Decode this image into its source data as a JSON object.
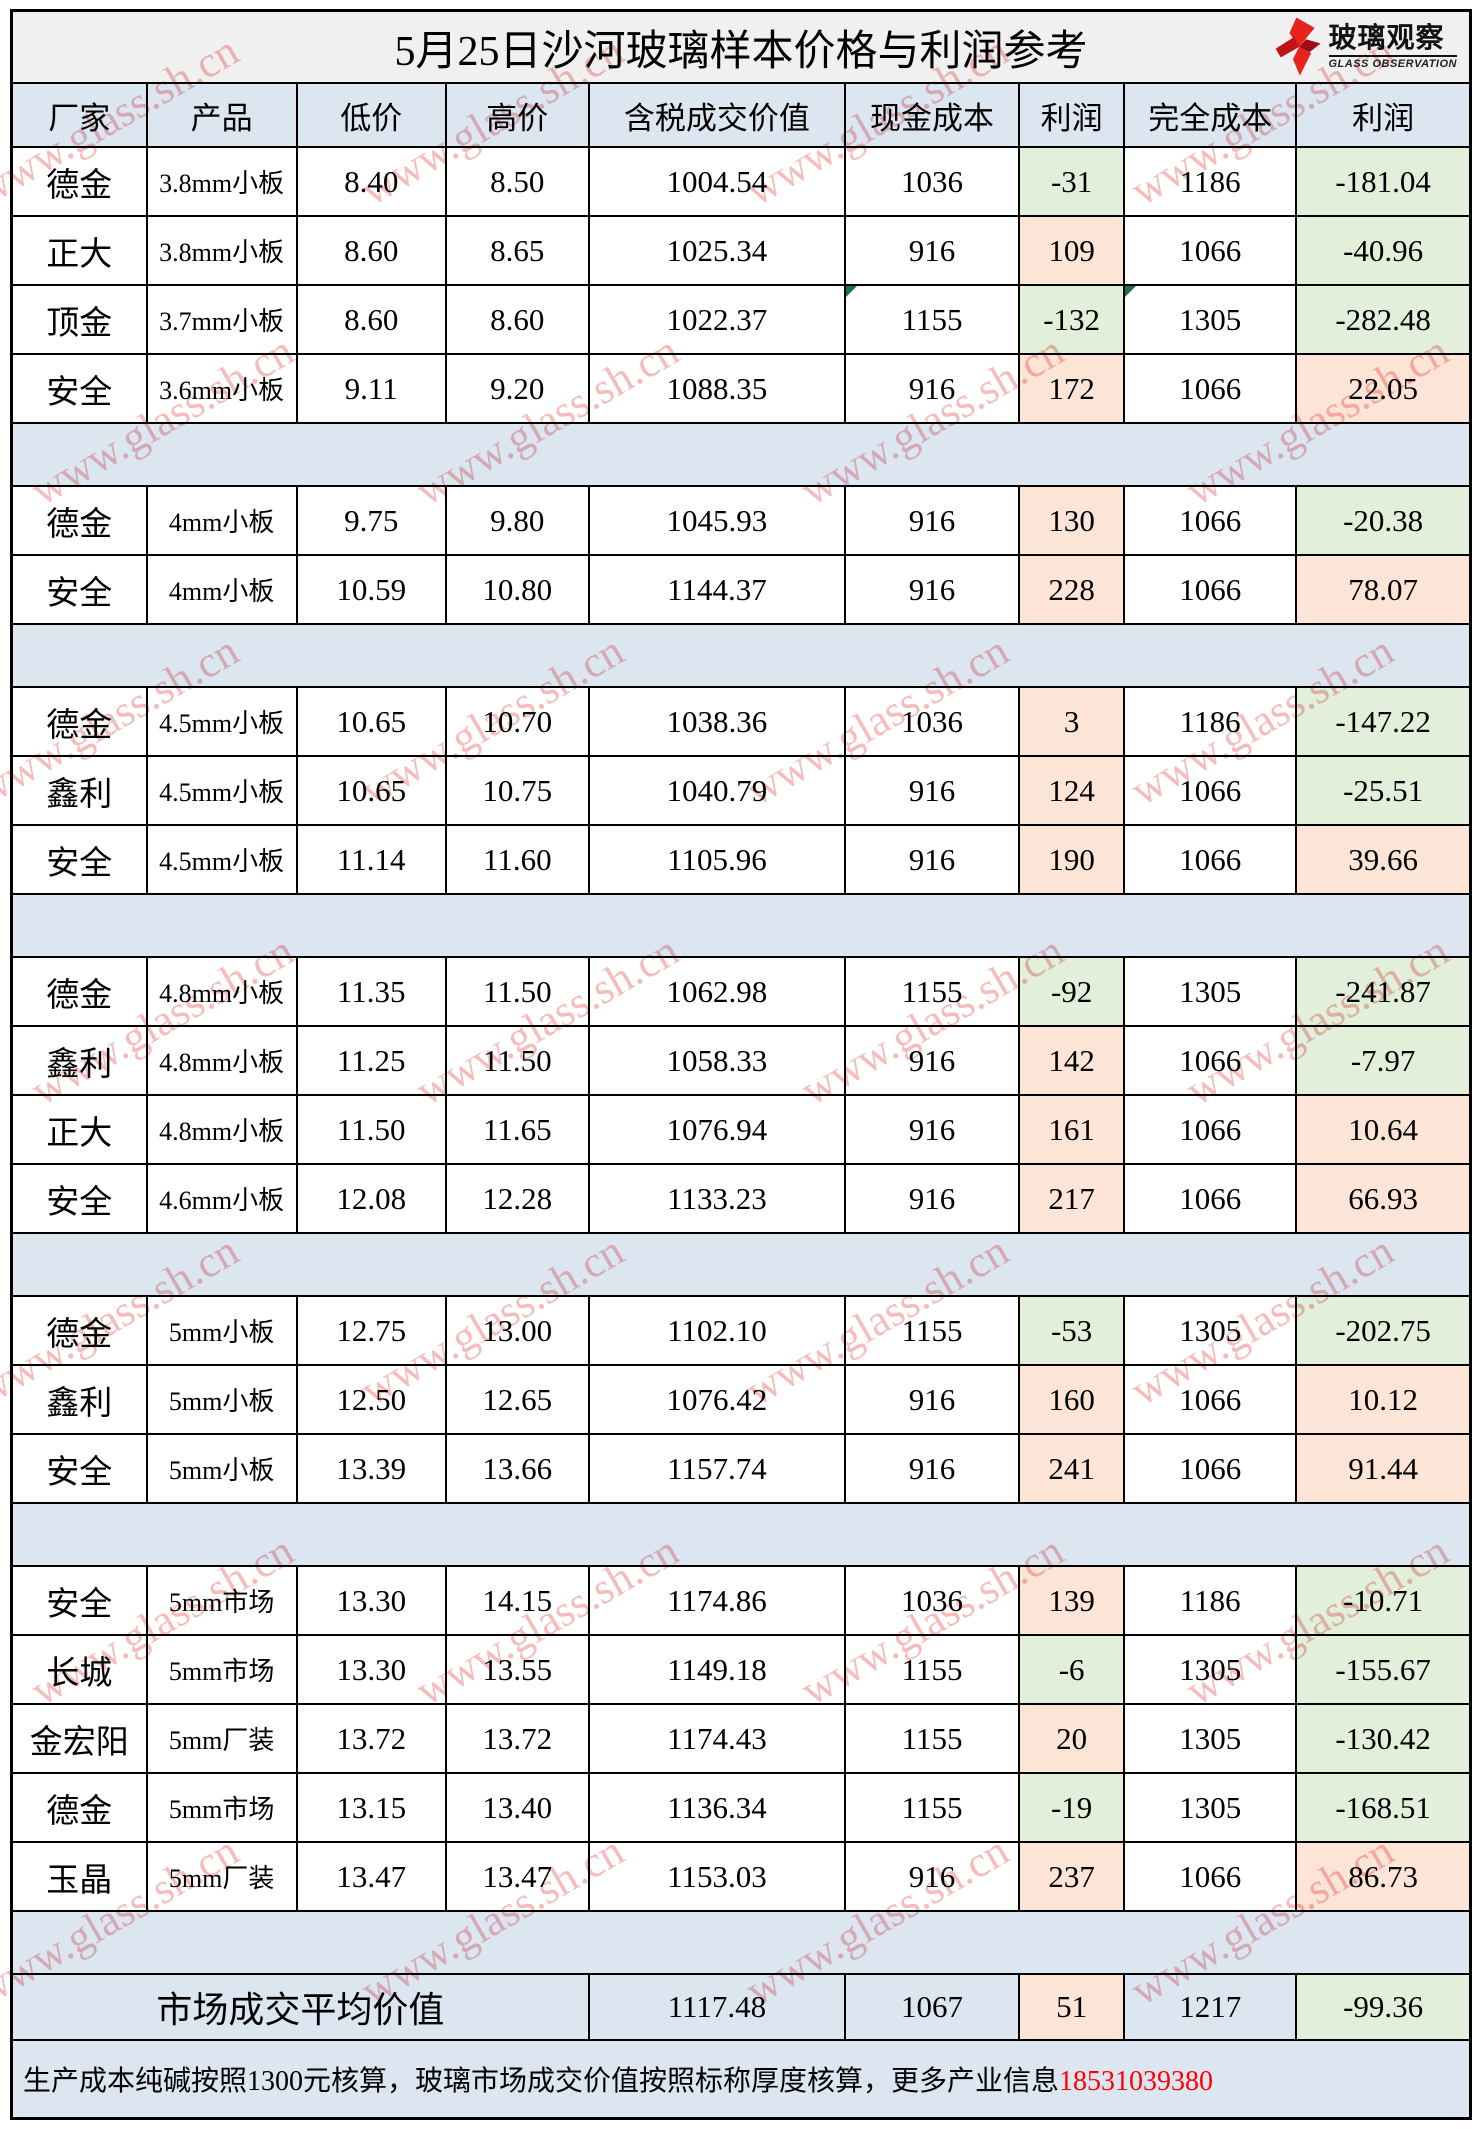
{
  "title": "5月25日沙河玻璃样本价格与利润参考",
  "logo": {
    "cn": "玻璃观察",
    "en": "GLASS OBSERVATION"
  },
  "watermark": "www.glass.sh.cn",
  "columns": [
    "厂家",
    "产品",
    "低价",
    "高价",
    "含税成交价值",
    "现金成本",
    "利润",
    "完全成本",
    "利润"
  ],
  "sections": [
    {
      "rows": [
        {
          "factory": "德金",
          "product": "3.8mm小板",
          "low": "8.40",
          "high": "8.50",
          "value": "1004.54",
          "cash_cost": "1036",
          "cash_profit": "-31",
          "full_cost": "1186",
          "full_profit": "-181.04"
        },
        {
          "factory": "正大",
          "product": "3.8mm小板",
          "low": "8.60",
          "high": "8.65",
          "value": "1025.34",
          "cash_cost": "916",
          "cash_profit": "109",
          "full_cost": "1066",
          "full_profit": "-40.96"
        },
        {
          "factory": "顶金",
          "product": "3.7mm小板",
          "low": "8.60",
          "high": "8.60",
          "value": "1022.37",
          "cash_cost": "1155",
          "cash_profit": "-132",
          "full_cost": "1305",
          "full_profit": "-282.48",
          "flags": [
            "cash_cost",
            "full_cost"
          ]
        },
        {
          "factory": "安全",
          "product": "3.6mm小板",
          "low": "9.11",
          "high": "9.20",
          "value": "1088.35",
          "cash_cost": "916",
          "cash_profit": "172",
          "full_cost": "1066",
          "full_profit": "22.05"
        }
      ]
    },
    {
      "rows": [
        {
          "factory": "德金",
          "product": "4mm小板",
          "low": "9.75",
          "high": "9.80",
          "value": "1045.93",
          "cash_cost": "916",
          "cash_profit": "130",
          "full_cost": "1066",
          "full_profit": "-20.38"
        },
        {
          "factory": "安全",
          "product": "4mm小板",
          "low": "10.59",
          "high": "10.80",
          "value": "1144.37",
          "cash_cost": "916",
          "cash_profit": "228",
          "full_cost": "1066",
          "full_profit": "78.07"
        }
      ]
    },
    {
      "rows": [
        {
          "factory": "德金",
          "product": "4.5mm小板",
          "low": "10.65",
          "high": "10.70",
          "value": "1038.36",
          "cash_cost": "1036",
          "cash_profit": "3",
          "full_cost": "1186",
          "full_profit": "-147.22"
        },
        {
          "factory": "鑫利",
          "product": "4.5mm小板",
          "low": "10.65",
          "high": "10.75",
          "value": "1040.79",
          "cash_cost": "916",
          "cash_profit": "124",
          "full_cost": "1066",
          "full_profit": "-25.51"
        },
        {
          "factory": "安全",
          "product": "4.5mm小板",
          "low": "11.14",
          "high": "11.60",
          "value": "1105.96",
          "cash_cost": "916",
          "cash_profit": "190",
          "full_cost": "1066",
          "full_profit": "39.66"
        }
      ]
    },
    {
      "rows": [
        {
          "factory": "德金",
          "product": "4.8mm小板",
          "low": "11.35",
          "high": "11.50",
          "value": "1062.98",
          "cash_cost": "1155",
          "cash_profit": "-92",
          "full_cost": "1305",
          "full_profit": "-241.87"
        },
        {
          "factory": "鑫利",
          "product": "4.8mm小板",
          "low": "11.25",
          "high": "11.50",
          "value": "1058.33",
          "cash_cost": "916",
          "cash_profit": "142",
          "full_cost": "1066",
          "full_profit": "-7.97"
        },
        {
          "factory": "正大",
          "product": "4.8mm小板",
          "low": "11.50",
          "high": "11.65",
          "value": "1076.94",
          "cash_cost": "916",
          "cash_profit": "161",
          "full_cost": "1066",
          "full_profit": "10.64"
        },
        {
          "factory": "安全",
          "product": "4.6mm小板",
          "low": "12.08",
          "high": "12.28",
          "value": "1133.23",
          "cash_cost": "916",
          "cash_profit": "217",
          "full_cost": "1066",
          "full_profit": "66.93"
        }
      ]
    },
    {
      "rows": [
        {
          "factory": "德金",
          "product": "5mm小板",
          "low": "12.75",
          "high": "13.00",
          "value": "1102.10",
          "cash_cost": "1155",
          "cash_profit": "-53",
          "full_cost": "1305",
          "full_profit": "-202.75"
        },
        {
          "factory": "鑫利",
          "product": "5mm小板",
          "low": "12.50",
          "high": "12.65",
          "value": "1076.42",
          "cash_cost": "916",
          "cash_profit": "160",
          "full_cost": "1066",
          "full_profit": "10.12"
        },
        {
          "factory": "安全",
          "product": "5mm小板",
          "low": "13.39",
          "high": "13.66",
          "value": "1157.74",
          "cash_cost": "916",
          "cash_profit": "241",
          "full_cost": "1066",
          "full_profit": "91.44"
        }
      ]
    },
    {
      "rows": [
        {
          "factory": "安全",
          "product": "5mm市场",
          "low": "13.30",
          "high": "14.15",
          "value": "1174.86",
          "cash_cost": "1036",
          "cash_profit": "139",
          "full_cost": "1186",
          "full_profit": "-10.71"
        },
        {
          "factory": "长城",
          "product": "5mm市场",
          "low": "13.30",
          "high": "13.55",
          "value": "1149.18",
          "cash_cost": "1155",
          "cash_profit": "-6",
          "full_cost": "1305",
          "full_profit": "-155.67"
        },
        {
          "factory": "金宏阳",
          "product": "5mm厂装",
          "low": "13.72",
          "high": "13.72",
          "value": "1174.43",
          "cash_cost": "1155",
          "cash_profit": "20",
          "full_cost": "1305",
          "full_profit": "-130.42"
        },
        {
          "factory": "德金",
          "product": "5mm市场",
          "low": "13.15",
          "high": "13.40",
          "value": "1136.34",
          "cash_cost": "1155",
          "cash_profit": "-19",
          "full_cost": "1305",
          "full_profit": "-168.51"
        },
        {
          "factory": "玉晶",
          "product": "5mm厂装",
          "low": "13.47",
          "high": "13.47",
          "value": "1153.03",
          "cash_cost": "916",
          "cash_profit": "237",
          "full_cost": "1066",
          "full_profit": "86.73"
        }
      ]
    }
  ],
  "summary": {
    "label": "市场成交平均价值",
    "value": "1117.48",
    "cash_cost": "1067",
    "cash_profit": "51",
    "full_cost": "1217",
    "full_profit": "-99.36"
  },
  "footer": {
    "text": "生产成本纯碱按照1300元核算，玻璃市场成交价值按照标称厚度核算，更多产业信息",
    "phone": "18531039380"
  },
  "colors": {
    "header_bg": "#DCE6F1",
    "separator_bg": "#DCE6F1",
    "title_bg": "#F0F0F0",
    "positive_profit_bg": "#FCE4D6",
    "negative_profit_bg": "#E2EFDA",
    "comment_flag_green": "#1E7145",
    "phone_red": "#FF0000",
    "logo_red": "#E8231D",
    "watermark_red": "rgba(236,106,106,0.45)"
  }
}
